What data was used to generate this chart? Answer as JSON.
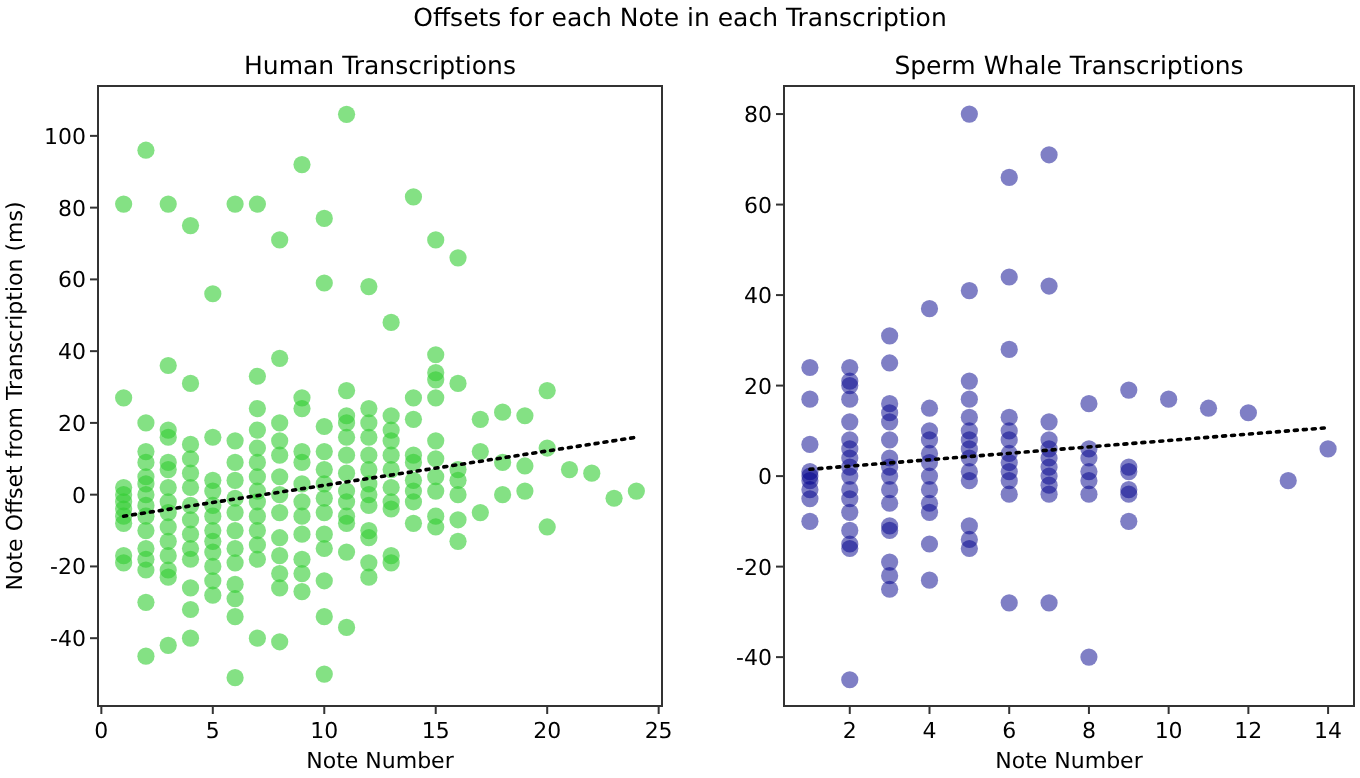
{
  "chart_data": [
    {
      "type": "scatter",
      "title": "Human Transcriptions",
      "annotations": [
        "Offsets for each Note in each Transcription"
      ],
      "xlabel": "Note Number",
      "ylabel": "Note Offset from Transcription (ms)",
      "xlim": [
        -0.15,
        25.15
      ],
      "ylim": [
        -58.9,
        113.9
      ],
      "xticks": [
        0,
        5,
        10,
        15,
        20,
        25
      ],
      "yticks": [
        -40,
        -20,
        0,
        20,
        40,
        60,
        80,
        100
      ],
      "marker": "circle",
      "series": [
        {
          "color": "#32cd32",
          "x": [
            1,
            1,
            1,
            1,
            1,
            1,
            1,
            1,
            1,
            1,
            2,
            2,
            2,
            2,
            2,
            2,
            2,
            2,
            2,
            2,
            2,
            2,
            2,
            2,
            2,
            3,
            3,
            3,
            3,
            3,
            3,
            3,
            3,
            3,
            3,
            3,
            3,
            3,
            3,
            3,
            4,
            4,
            4,
            4,
            4,
            4,
            4,
            4,
            4,
            4,
            4,
            4,
            4,
            4,
            5,
            5,
            5,
            5,
            5,
            5,
            5,
            5,
            5,
            5,
            5,
            5,
            6,
            6,
            6,
            6,
            6,
            6,
            6,
            6,
            6,
            6,
            6,
            6,
            6,
            7,
            7,
            7,
            7,
            7,
            7,
            7,
            7,
            7,
            7,
            7,
            7,
            7,
            7,
            8,
            8,
            8,
            8,
            8,
            8,
            8,
            8,
            8,
            8,
            8,
            8,
            8,
            9,
            9,
            9,
            9,
            9,
            9,
            9,
            9,
            9,
            9,
            9,
            9,
            10,
            10,
            10,
            10,
            10,
            10,
            10,
            10,
            10,
            10,
            10,
            10,
            10,
            11,
            11,
            11,
            11,
            11,
            11,
            11,
            11,
            11,
            11,
            11,
            11,
            11,
            12,
            12,
            12,
            12,
            12,
            12,
            12,
            12,
            12,
            12,
            12,
            12,
            12,
            13,
            13,
            13,
            13,
            13,
            13,
            13,
            13,
            13,
            13,
            13,
            14,
            14,
            14,
            14,
            14,
            14,
            14,
            14,
            14,
            15,
            15,
            15,
            15,
            15,
            15,
            15,
            15,
            15,
            15,
            15,
            16,
            16,
            16,
            16,
            16,
            16,
            16,
            17,
            17,
            17,
            18,
            18,
            18,
            19,
            19,
            19,
            20,
            20,
            20,
            21,
            22,
            23,
            24
          ],
          "values": [
            81,
            27,
            2,
            0,
            -2,
            -4,
            -6,
            -8,
            -17,
            -19,
            96,
            20,
            12,
            9,
            5,
            3,
            0,
            -3,
            -6,
            -10,
            -15,
            -18,
            -21,
            -30,
            -45,
            81,
            36,
            18,
            16,
            9,
            7,
            2,
            -2,
            -5,
            -9,
            -13,
            -17,
            -21,
            -23,
            -42,
            75,
            31,
            14,
            10,
            6,
            2,
            -3,
            -7,
            -11,
            -15,
            -18,
            -26,
            -32,
            -40,
            56,
            16,
            4,
            1,
            -3,
            -6,
            -10,
            -13,
            -16,
            -20,
            -24,
            -28,
            81,
            15,
            9,
            4,
            -1,
            -5,
            -10,
            -15,
            -19,
            -25,
            -29,
            -34,
            -51,
            81,
            33,
            24,
            18,
            13,
            9,
            5,
            1,
            -2,
            -6,
            -10,
            -14,
            -18,
            -40,
            71,
            38,
            20,
            15,
            11,
            5,
            0,
            -5,
            -12,
            -17,
            -22,
            -26,
            -41,
            92,
            27,
            24,
            12,
            9,
            3,
            -2,
            -6,
            -11,
            -18,
            -22,
            -27,
            77,
            59,
            19,
            12,
            7,
            3,
            -1,
            -5,
            -11,
            -15,
            -24,
            -34,
            -50,
            106,
            29,
            22,
            20,
            16,
            11,
            6,
            1,
            -2,
            -6,
            -8,
            -16,
            -37,
            58,
            24,
            20,
            16,
            11,
            7,
            3,
            0,
            -3,
            -10,
            -12,
            -19,
            -23,
            48,
            22,
            18,
            15,
            11,
            7,
            2,
            -2,
            -4,
            -17,
            -19,
            83,
            27,
            21,
            11,
            9,
            4,
            1,
            -2,
            -8,
            71,
            39,
            34,
            32,
            27,
            15,
            10,
            5,
            1,
            -6,
            -9,
            66,
            31,
            7,
            4,
            0,
            -7,
            -13,
            21,
            12,
            -5,
            23,
            9,
            0,
            22,
            8,
            1,
            29,
            13,
            -9,
            7,
            6,
            -1,
            1
          ]
        },
        {
          "type": "line",
          "color": "#000000",
          "line_style": "dotted",
          "marker": "none",
          "x": [
            1,
            24
          ],
          "values": [
            -6,
            16
          ]
        }
      ]
    },
    {
      "type": "scatter",
      "title": "Sperm Whale Transcriptions",
      "xlabel": "Note Number",
      "xlim": [
        0.35,
        14.65
      ],
      "ylim": [
        -50.8,
        86.2
      ],
      "xticks": [
        2,
        4,
        6,
        8,
        10,
        12,
        14
      ],
      "yticks": [
        -40,
        -20,
        0,
        20,
        40,
        60,
        80
      ],
      "marker": "circle",
      "series": [
        {
          "color": "#00008b",
          "x": [
            1,
            1,
            1,
            1,
            1,
            1,
            1,
            1,
            1,
            2,
            2,
            2,
            2,
            2,
            2,
            2,
            2,
            2,
            2,
            2,
            2,
            2,
            2,
            2,
            2,
            2,
            3,
            3,
            3,
            3,
            3,
            3,
            3,
            3,
            3,
            3,
            3,
            3,
            3,
            3,
            3,
            3,
            4,
            4,
            4,
            4,
            4,
            4,
            4,
            4,
            4,
            4,
            4,
            4,
            5,
            5,
            5,
            5,
            5,
            5,
            5,
            5,
            5,
            5,
            5,
            5,
            5,
            5,
            6,
            6,
            6,
            6,
            6,
            6,
            6,
            6,
            6,
            6,
            6,
            6,
            7,
            7,
            7,
            7,
            7,
            7,
            7,
            7,
            7,
            7,
            7,
            8,
            8,
            8,
            8,
            8,
            8,
            8,
            9,
            9,
            9,
            9,
            9,
            9,
            10,
            11,
            12,
            13,
            14
          ],
          "values": [
            24,
            17,
            7,
            1,
            0,
            -1,
            -3,
            -5,
            -10,
            24,
            21,
            20,
            17,
            12,
            8,
            6,
            4,
            2,
            0,
            -3,
            -5,
            -8,
            -12,
            -15,
            -16,
            -45,
            31,
            25,
            16,
            14,
            12,
            8,
            4,
            2,
            0,
            -3,
            -6,
            -11,
            -12,
            -19,
            -22,
            -25,
            37,
            15,
            10,
            8,
            5,
            3,
            0,
            -3,
            -6,
            -8,
            -15,
            -23,
            80,
            41,
            21,
            17,
            13,
            10,
            8,
            6,
            4,
            1,
            -1,
            -11,
            -14,
            -16,
            66,
            44,
            28,
            13,
            10,
            8,
            5,
            3,
            1,
            -1,
            -4,
            -28,
            71,
            42,
            12,
            8,
            6,
            4,
            2,
            0,
            -2,
            -4,
            -28,
            16,
            6,
            4,
            1,
            -1,
            -4,
            -40,
            19,
            2,
            1,
            -3,
            -4,
            -10,
            17,
            15,
            14,
            -1,
            6
          ]
        },
        {
          "type": "line",
          "color": "#000000",
          "line_style": "dotted",
          "marker": "none",
          "x": [
            1,
            14
          ],
          "values": [
            1.5,
            10.7
          ]
        }
      ]
    }
  ]
}
